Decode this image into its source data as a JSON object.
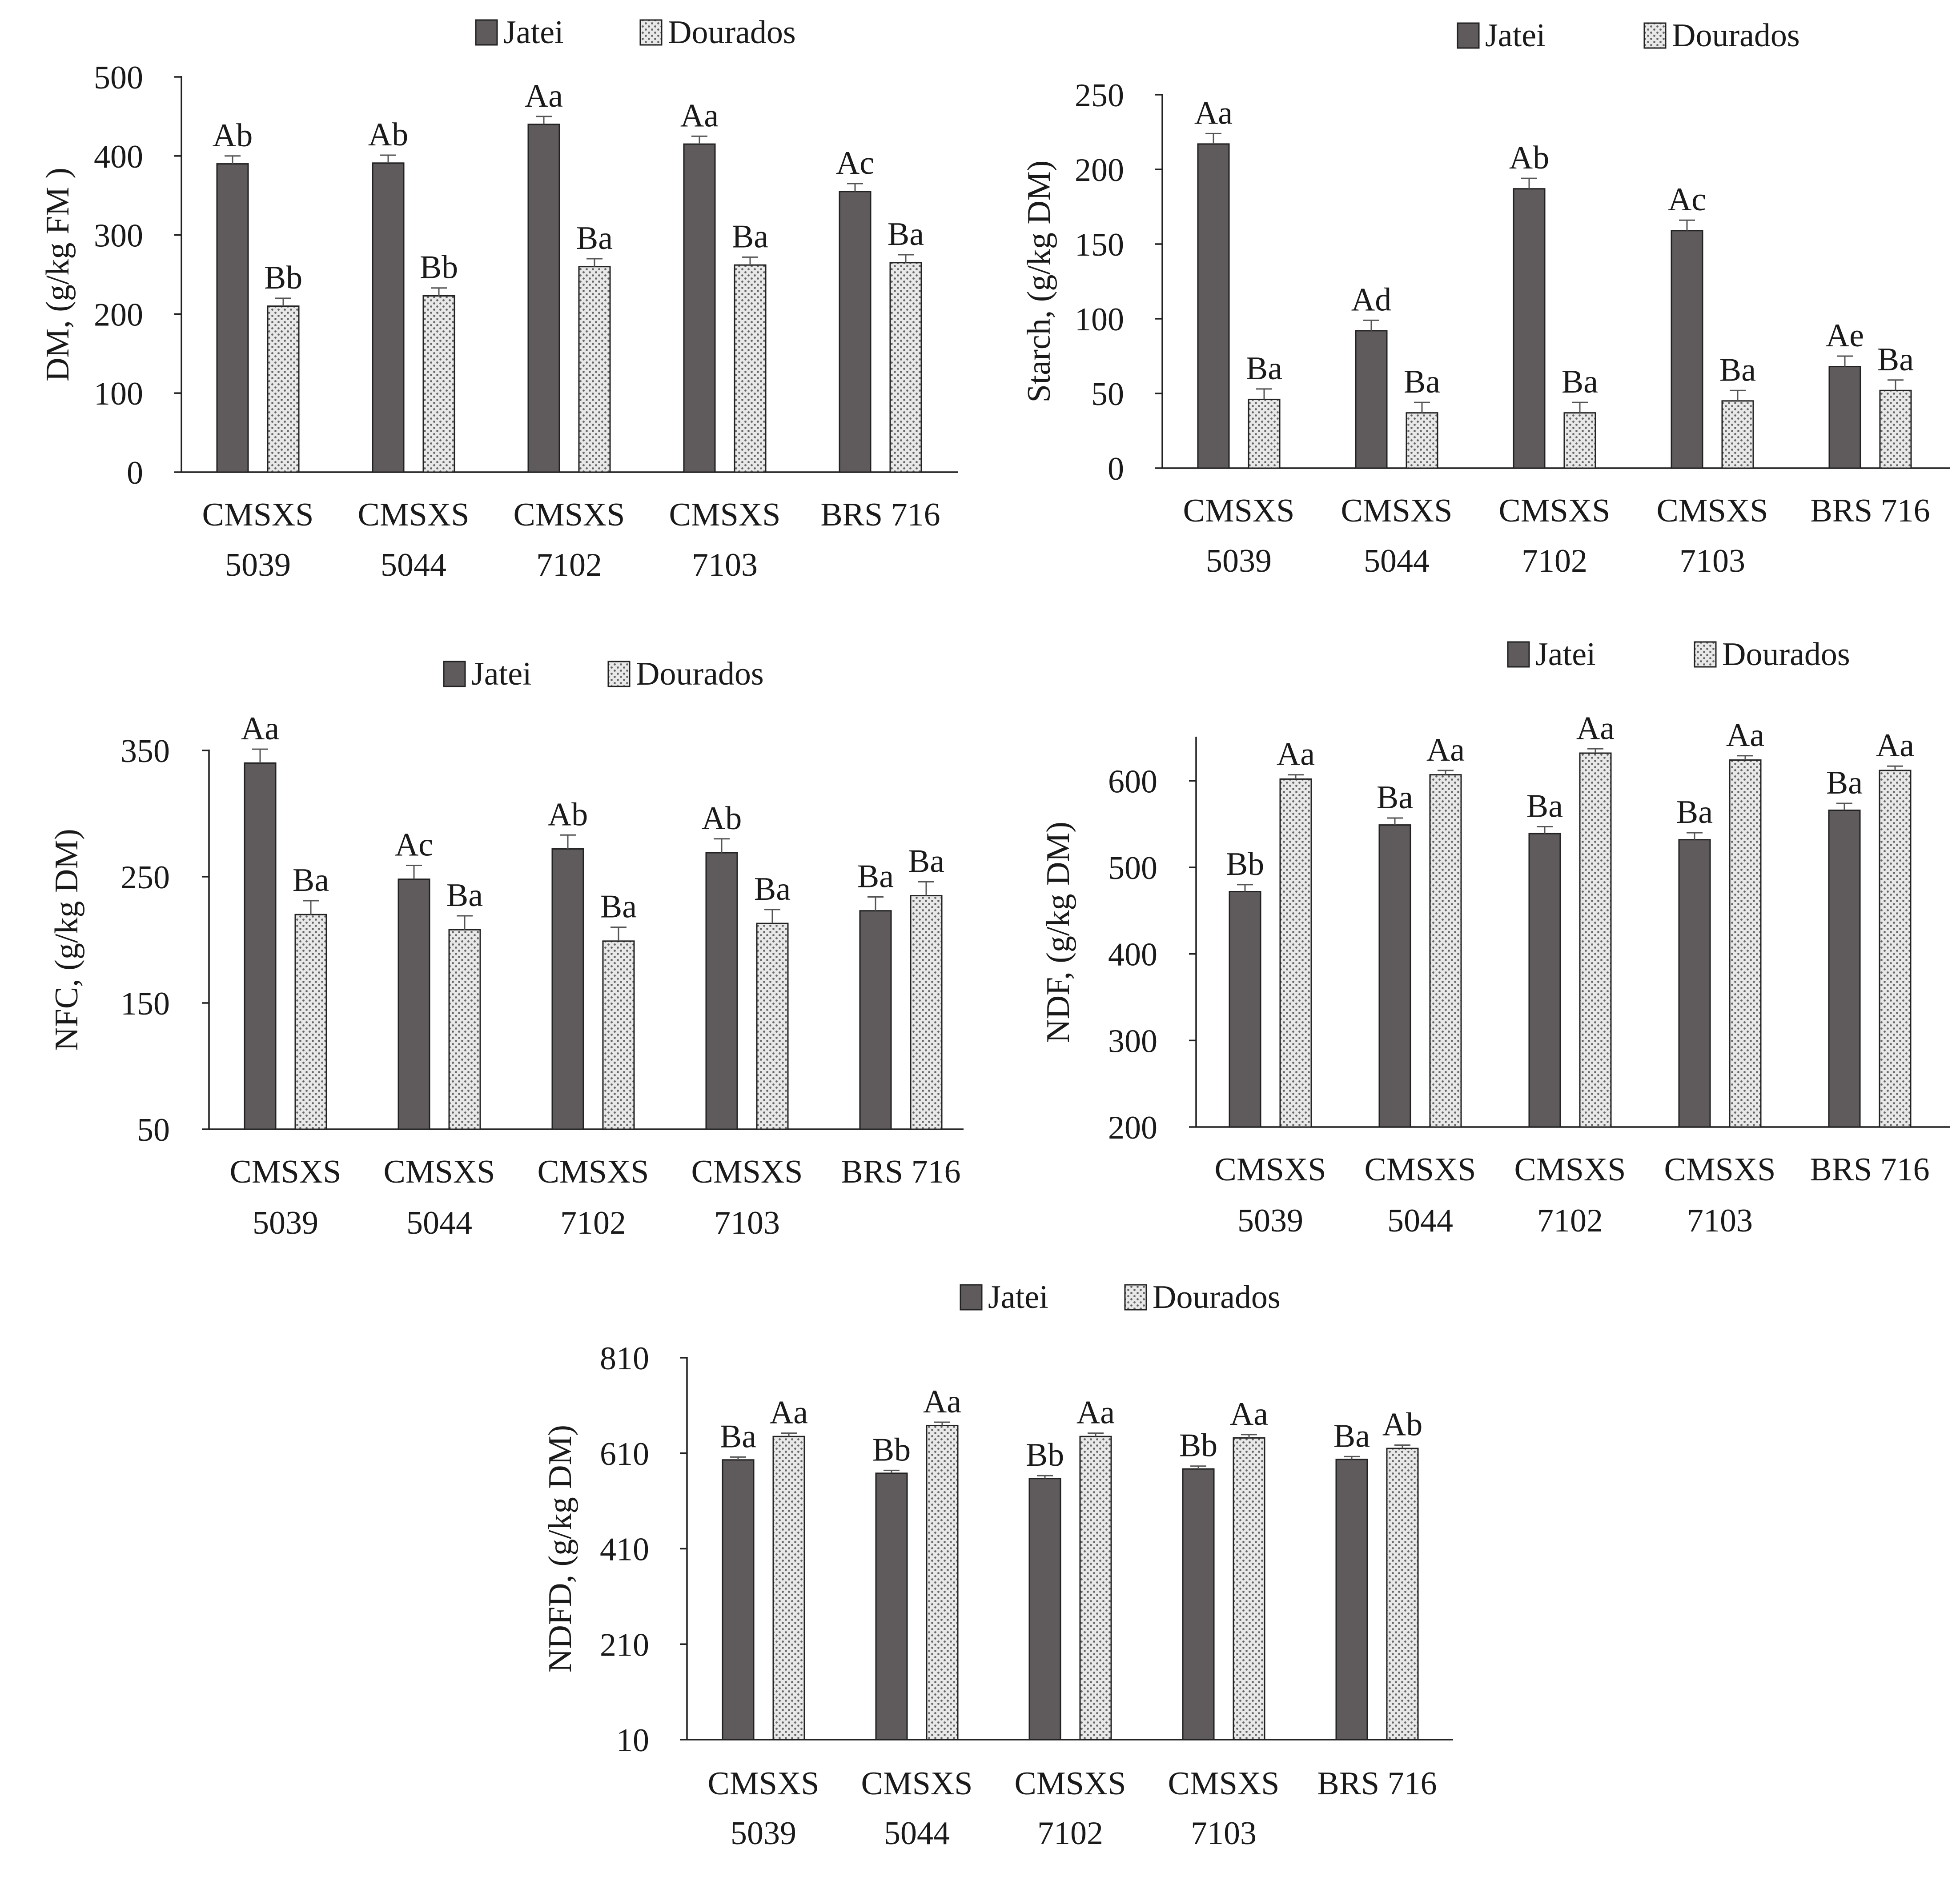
{
  "legend": {
    "series_a": "Jatei",
    "series_b": "Dourados"
  },
  "colors": {
    "jatei": "#5f5a5c",
    "dourados": "#e6e6e6",
    "dots": "#6f6f6f",
    "axis": "#222222"
  },
  "chart_data": [
    {
      "id": "dm",
      "type": "bar",
      "ylabel": "DM, (g/kg FM )",
      "ylim": [
        0,
        500
      ],
      "yticks": [
        "0",
        "100",
        "200",
        "300",
        "400",
        "500"
      ],
      "categories": [
        [
          "CMSXS",
          "5039"
        ],
        [
          "CMSXS",
          "5044"
        ],
        [
          "CMSXS",
          "7102"
        ],
        [
          "CMSXS",
          "7103"
        ],
        [
          "BRS 716"
        ]
      ],
      "series": [
        {
          "name": "Jatei",
          "values": [
            390,
            391,
            440,
            415,
            355
          ],
          "errors": [
            10,
            10,
            10,
            10,
            10
          ],
          "letters": [
            "Ab",
            "Ab",
            "Aa",
            "Aa",
            "Ac"
          ]
        },
        {
          "name": "Dourados",
          "values": [
            210,
            223,
            260,
            262,
            265
          ],
          "errors": [
            10,
            10,
            10,
            10,
            10
          ],
          "letters": [
            "Bb",
            "Bb",
            "Ba",
            "Ba",
            "Ba"
          ]
        }
      ]
    },
    {
      "id": "starch",
      "type": "bar",
      "ylabel": "Starch, (g/kg DM)",
      "ylim": [
        0,
        250
      ],
      "yticks": [
        "0",
        "50",
        "100",
        "150",
        "200",
        "250"
      ],
      "categories": [
        [
          "CMSXS",
          "5039"
        ],
        [
          "CMSXS",
          "5044"
        ],
        [
          "CMSXS",
          "7102"
        ],
        [
          "CMSXS",
          "7103"
        ],
        [
          "BRS 716"
        ]
      ],
      "series": [
        {
          "name": "Jatei",
          "values": [
            217,
            92,
            187,
            159,
            68
          ],
          "errors": [
            7,
            7,
            7,
            7,
            7
          ],
          "letters": [
            "Aa",
            "Ad",
            "Ab",
            "Ac",
            "Ae"
          ]
        },
        {
          "name": "Dourados",
          "values": [
            46,
            37,
            37,
            45,
            52
          ],
          "errors": [
            7,
            7,
            7,
            7,
            7
          ],
          "letters": [
            "Ba",
            "Ba",
            "Ba",
            "Ba",
            "Ba"
          ]
        }
      ]
    },
    {
      "id": "nfc",
      "type": "bar",
      "ylabel": "NFC, (g/kg DM)",
      "ylim": [
        50,
        350
      ],
      "yticks": [
        "50",
        "150",
        "250",
        "350"
      ],
      "categories": [
        [
          "CMSXS",
          "5039"
        ],
        [
          "CMSXS",
          "5044"
        ],
        [
          "CMSXS",
          "7102"
        ],
        [
          "CMSXS",
          "7103"
        ],
        [
          "BRS 716"
        ]
      ],
      "series": [
        {
          "name": "Jatei",
          "values": [
            340,
            248,
            272,
            269,
            223
          ],
          "errors": [
            11,
            11,
            11,
            11,
            11
          ],
          "letters": [
            "Aa",
            "Ac",
            "Ab",
            "Ab",
            "Ba"
          ]
        },
        {
          "name": "Dourados",
          "values": [
            220,
            208,
            199,
            213,
            235
          ],
          "errors": [
            11,
            11,
            11,
            11,
            11
          ],
          "letters": [
            "Ba",
            "Ba",
            "Ba",
            "Ba",
            "Ba"
          ]
        }
      ]
    },
    {
      "id": "ndf",
      "type": "bar",
      "ylabel": "NDF, (g/kg DM)",
      "ylim": [
        200,
        650
      ],
      "yticks": [
        "200",
        "300",
        "400",
        "500",
        "600"
      ],
      "categories": [
        [
          "CMSXS",
          "5039"
        ],
        [
          "CMSXS",
          "5044"
        ],
        [
          "CMSXS",
          "7102"
        ],
        [
          "CMSXS",
          "7103"
        ],
        [
          "BRS 716"
        ]
      ],
      "series": [
        {
          "name": "Jatei",
          "values": [
            472,
            549,
            539,
            532,
            566
          ],
          "errors": [
            8,
            8,
            8,
            8,
            8
          ],
          "letters": [
            "Bb",
            "Ba",
            "Ba",
            "Ba",
            "Ba"
          ]
        },
        {
          "name": "Dourados",
          "values": [
            602,
            607,
            632,
            624,
            612
          ],
          "errors": [
            5,
            5,
            5,
            5,
            5
          ],
          "letters": [
            "Aa",
            "Aa",
            "Aa",
            "Aa",
            "Aa"
          ]
        }
      ]
    },
    {
      "id": "ndfd",
      "type": "bar",
      "ylabel": "NDFD, (g/kg DM)",
      "ylim": [
        10,
        810
      ],
      "yticks": [
        "10",
        "210",
        "410",
        "610",
        "810"
      ],
      "categories": [
        [
          "CMSXS",
          "5039"
        ],
        [
          "CMSXS",
          "5044"
        ],
        [
          "CMSXS",
          "7102"
        ],
        [
          "CMSXS",
          "7103"
        ],
        [
          "BRS 716"
        ]
      ],
      "series": [
        {
          "name": "Jatei",
          "values": [
            596,
            568,
            557,
            577,
            597
          ],
          "errors": [
            6,
            6,
            6,
            6,
            6
          ],
          "letters": [
            "Ba",
            "Bb",
            "Bb",
            "Bb",
            "Ba"
          ]
        },
        {
          "name": "Dourados",
          "values": [
            645,
            668,
            645,
            642,
            620
          ],
          "errors": [
            7,
            7,
            7,
            7,
            7
          ],
          "letters": [
            "Aa",
            "Aa",
            "Aa",
            "Aa",
            "Ab"
          ]
        }
      ]
    }
  ]
}
